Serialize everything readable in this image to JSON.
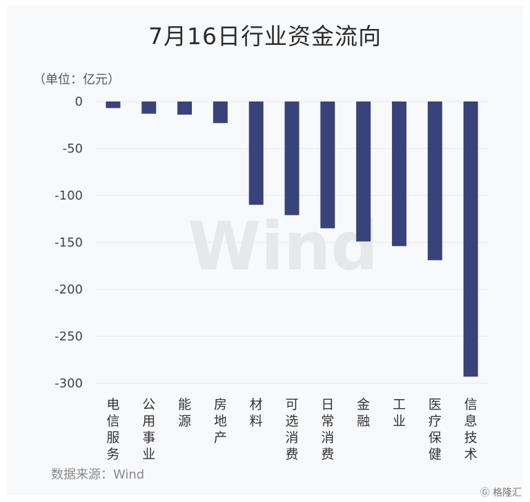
{
  "title": "7月16日行业资金流向",
  "unit_label": "（单位：亿元）",
  "source": "数据来源：Wind",
  "watermark": "Wind",
  "logo_text": "格隆汇",
  "chart_data": {
    "type": "bar",
    "title": "7月16日行业资金流向",
    "ylabel": "（单位：亿元）",
    "xlabel": "",
    "categories": [
      "电信服务",
      "公用事业",
      "能源",
      "房地产",
      "材料",
      "可选消费",
      "日常消费",
      "金融",
      "工业",
      "医疗保健",
      "信息技术"
    ],
    "values": [
      -7,
      -13,
      -14,
      -23,
      -110,
      -121,
      -135,
      -149,
      -154,
      -169,
      -293
    ],
    "ylim": [
      -300,
      0
    ],
    "yticks": [
      0,
      -50,
      -100,
      -150,
      -200,
      -250,
      -300
    ],
    "bar_color": "#37437a",
    "grid": true
  }
}
